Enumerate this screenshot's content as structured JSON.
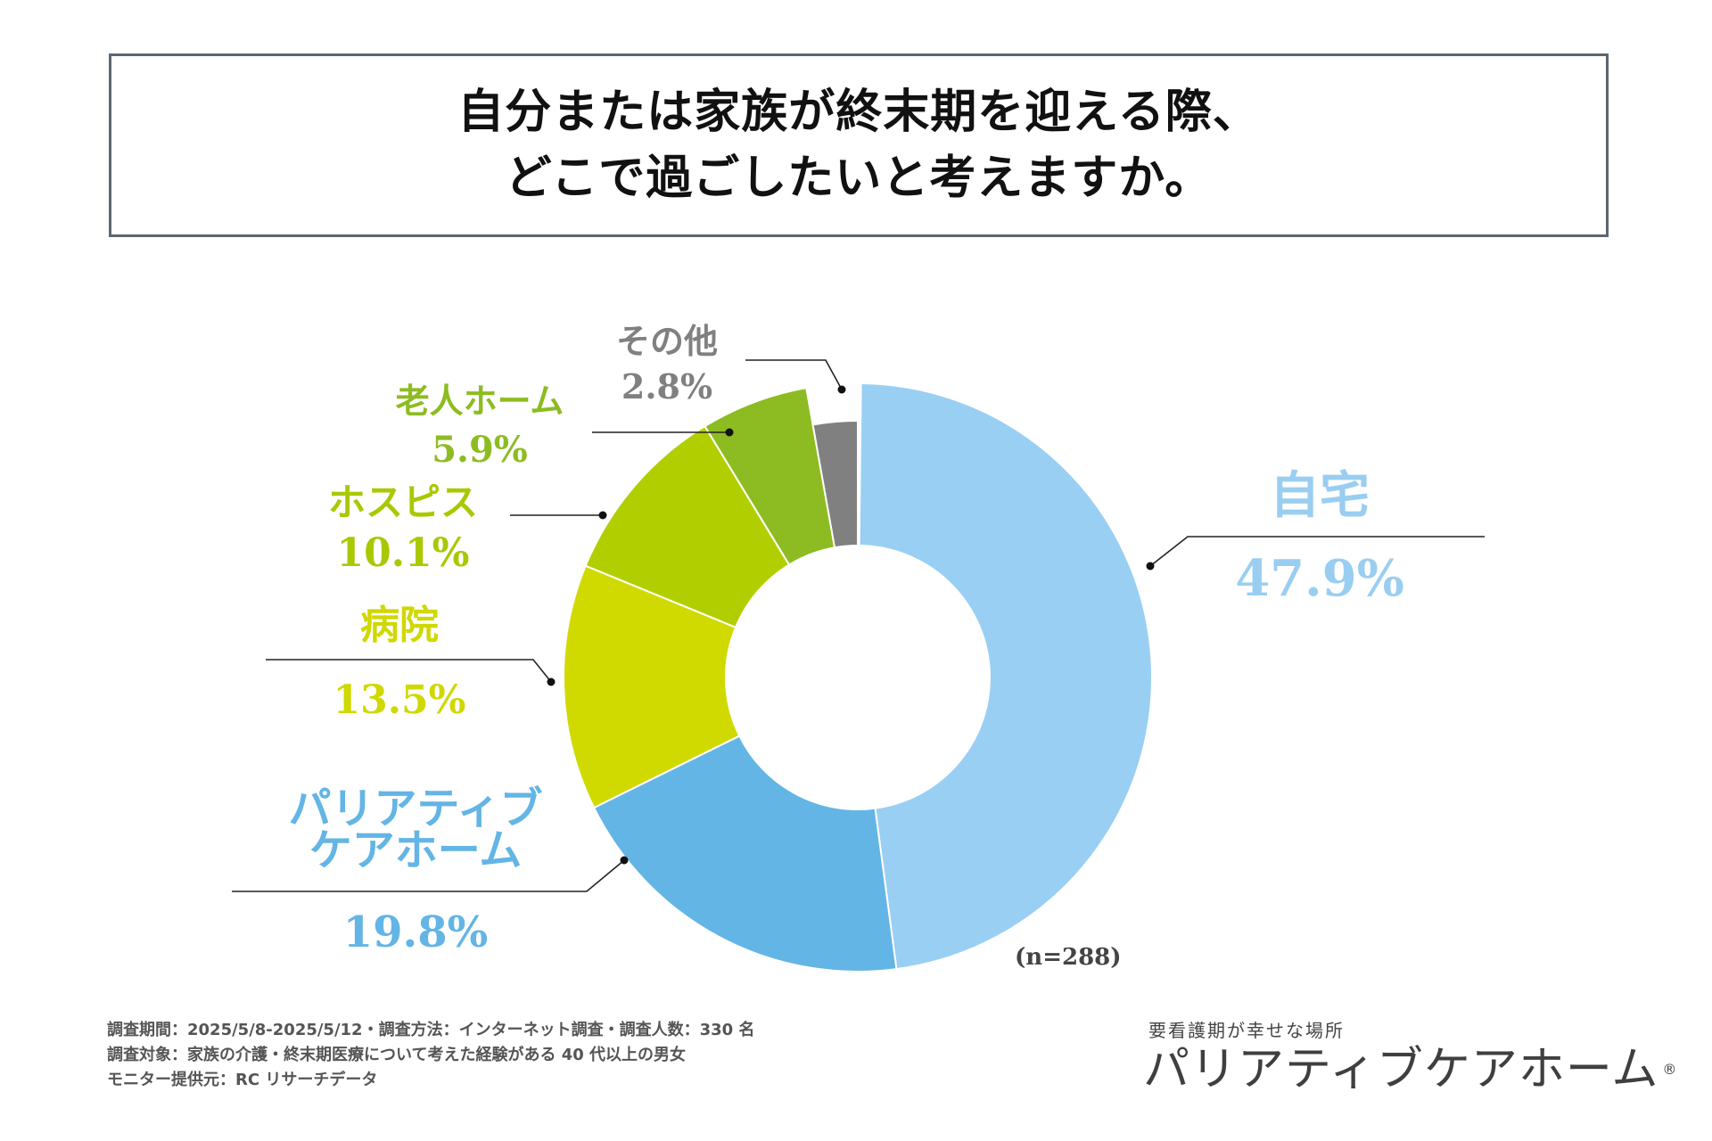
{
  "title": {
    "line1": "自分または家族が終末期を迎える際、",
    "line2": "どこで過ごしたいと考えますか。"
  },
  "chart_data": {
    "type": "pie",
    "donut": true,
    "title": "自分または家族が終末期を迎える際、どこで過ごしたいと考えますか。",
    "unit": "%",
    "sample_note": "(n=288)",
    "slices": [
      {
        "label": "自宅",
        "value": 47.9,
        "value_label": "47.9%",
        "color": "#99cff3"
      },
      {
        "label": "パリアティブケアホーム",
        "label_lines": [
          "パリアティブ",
          "ケアホーム"
        ],
        "value": 19.8,
        "value_label": "19.8%",
        "color": "#63b5e5"
      },
      {
        "label": "病院",
        "value": 13.5,
        "value_label": "13.5%",
        "color": "#d1da00"
      },
      {
        "label": "ホスピス",
        "value": 10.1,
        "value_label": "10.1%",
        "color": "#b1cf00"
      },
      {
        "label": "老人ホーム",
        "value": 5.9,
        "value_label": "5.9%",
        "color": "#8dbc22"
      },
      {
        "label": "その他",
        "value": 2.8,
        "value_label": "2.8%",
        "color": "#808080"
      }
    ],
    "label_colors": [
      "#9acef1",
      "#63b5e5",
      "#cfd800",
      "#aac800",
      "#8dbc22",
      "#808080"
    ]
  },
  "footnotes": [
    "調査期間：2025/5/8-2025/5/12・調査方法：インターネット調査・調査人数：330 名",
    "調査対象：家族の介護・終末期医療について考えた経験がある 40 代以上の男女",
    "モニター提供元：RC リサーチデータ"
  ],
  "brand": {
    "tagline": "要看護期が幸せな場所",
    "name": "パリアティブケアホーム",
    "mark": "®"
  }
}
